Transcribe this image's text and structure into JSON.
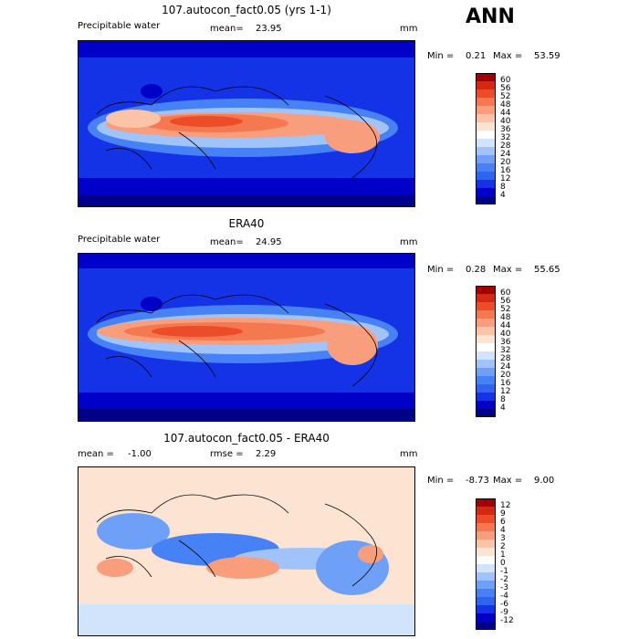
{
  "season": "ANN",
  "colors": [
    "#00008b",
    "#0000c8",
    "#1432e6",
    "#2e64f0",
    "#4682f5",
    "#6ea0f7",
    "#a0c4fa",
    "#d2e4fc",
    "#ffffff",
    "#fde4d2",
    "#fbc4a8",
    "#f89e7c",
    "#f47850",
    "#ec4c28",
    "#d22814",
    "#a00000"
  ],
  "panels": [
    {
      "title": "107.autocon_fact0.05 (yrs 1-1)",
      "variable": "Precipitable water",
      "mean_label": "mean=",
      "mean_value": "23.95",
      "units": "mm",
      "min_label": "Min =",
      "min_value": "0.21",
      "max_label": "Max =",
      "max_value": "53.59",
      "colorbar": [
        "60",
        "56",
        "52",
        "48",
        "44",
        "40",
        "36",
        "32",
        "28",
        "24",
        "20",
        "16",
        "12",
        "8",
        "4"
      ]
    },
    {
      "title": "ERA40",
      "variable": "Precipitable water",
      "mean_label": "mean=",
      "mean_value": "24.95",
      "units": "mm",
      "min_label": "Min =",
      "min_value": "0.28",
      "max_label": "Max =",
      "max_value": "55.65",
      "colorbar": [
        "60",
        "56",
        "52",
        "48",
        "44",
        "40",
        "36",
        "32",
        "28",
        "24",
        "20",
        "16",
        "12",
        "8",
        "4"
      ]
    },
    {
      "title": "107.autocon_fact0.05 - ERA40",
      "mean_label": "mean =",
      "mean_value": "-1.00",
      "rmse_label": "rmse =",
      "rmse_value": "2.29",
      "units": "mm",
      "min_label": "Min =",
      "min_value": "-8.73",
      "max_label": "Max =",
      "max_value": "9.00",
      "colorbar": [
        "12",
        "9",
        "6",
        "4",
        "3",
        "2",
        "1",
        "0",
        "-1",
        "-2",
        "-3",
        "-4",
        "-6",
        "-9",
        "-12"
      ]
    }
  ]
}
